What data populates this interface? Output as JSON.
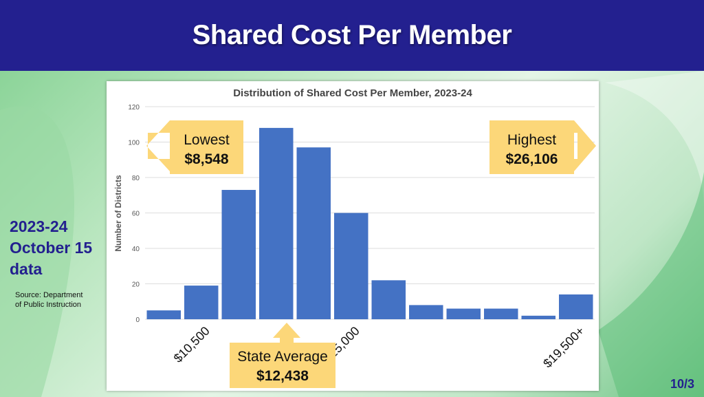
{
  "slide": {
    "title": "Shared Cost Per Member",
    "side_label_lines": [
      "2023-24",
      "October 15",
      "data"
    ],
    "source_lines": [
      "Source: Department",
      "of Public Instruction"
    ],
    "page_number": "10/3"
  },
  "chart_data": {
    "type": "bar",
    "title": "Distribution of Shared Cost Per Member, 2023-24",
    "xlabel": "",
    "ylabel": "Number of Districts",
    "ylim": [
      0,
      120
    ],
    "yticks": [
      0,
      20,
      40,
      60,
      80,
      100,
      120
    ],
    "grid": true,
    "values": [
      5,
      19,
      73,
      108,
      97,
      60,
      22,
      8,
      6,
      6,
      2,
      14
    ],
    "bar_color": "#4472c4",
    "x_tick_labels": [
      {
        "label": "$10,500",
        "after_bar": 1
      },
      {
        "label": "$15,000",
        "after_bar": 5
      },
      {
        "label": "$19,500+",
        "after_bar": 11
      }
    ],
    "callouts": {
      "lowest": {
        "title": "Lowest",
        "value": "$8,548"
      },
      "highest": {
        "title": "Highest",
        "value": "$26,106"
      },
      "state_average": {
        "title": "State Average",
        "value": "$12,438"
      }
    },
    "callout_color": "#fcd779"
  }
}
